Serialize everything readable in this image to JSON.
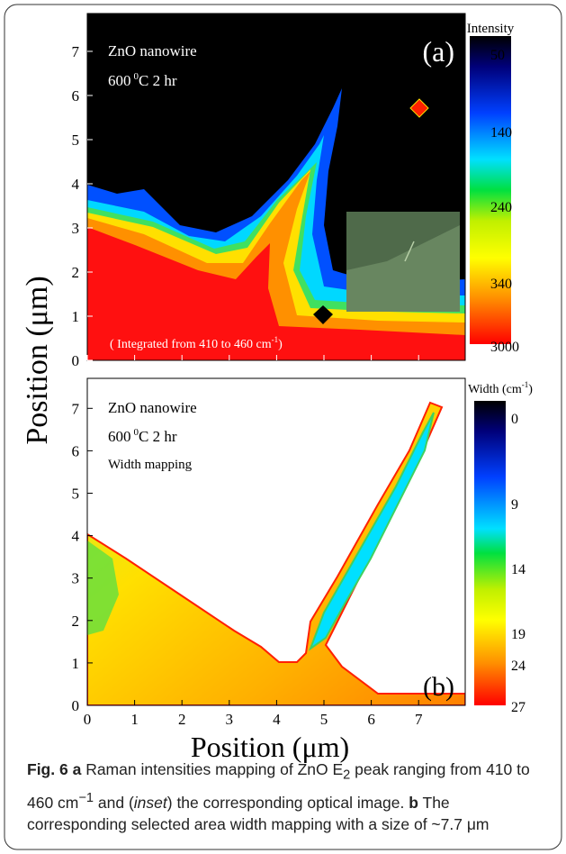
{
  "panel_a": {
    "label": "(a)",
    "line1": "ZnO nanowire",
    "temp": "600",
    "deg": "0",
    "temp_rest": "C 2 hr",
    "note": "( Integrated from 410 to 460 cm",
    "note_sup": "-1",
    "note_end": ")",
    "colorbar_title": "Intensity",
    "colorbar_labels": [
      "50",
      "140",
      "240",
      "340",
      "3000"
    ],
    "yticks": [
      0,
      1,
      2,
      3,
      4,
      5,
      6,
      7
    ]
  },
  "panel_b": {
    "label": "(b)",
    "line1": "ZnO nanowire",
    "temp": "600",
    "deg": "0",
    "temp_rest": "C 2 hr",
    "line3": "Width mapping",
    "colorbar_title": "Width (cm",
    "colorbar_sup": "-1",
    "colorbar_end": ")",
    "colorbar_labels": [
      "0",
      "9",
      "14",
      "19",
      "24",
      "27"
    ],
    "yticks": [
      0,
      1,
      2,
      3,
      4,
      5,
      6,
      7
    ]
  },
  "x_axis": {
    "label": "Position (μm)",
    "ticks": [
      0,
      1,
      2,
      3,
      4,
      5,
      6,
      7
    ]
  },
  "y_axis_label": "Position (μm)",
  "caption": {
    "fig": "Fig. 6",
    "a": "a",
    "t1": "Raman intensities mapping of ZnO E",
    "sub": "2",
    "t2": "peak ranging from 410 to 460 cm",
    "sup": "−1",
    "t3": "and (",
    "inset": "inset",
    "t4": ") the corresponding optical image.",
    "b": "b",
    "t5": "The corresponding selected area width mapping with a size of ~7.7 μm"
  }
}
